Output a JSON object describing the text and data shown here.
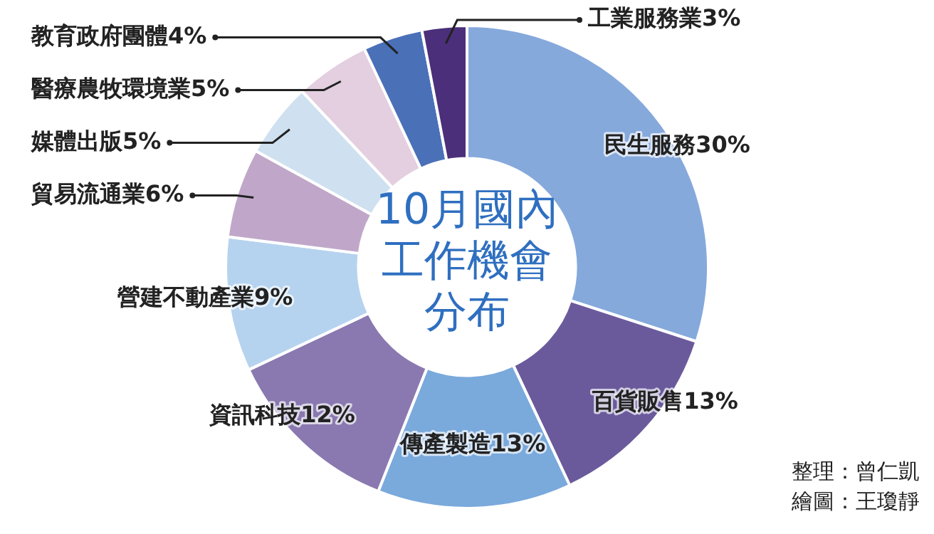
{
  "chart_data": {
    "type": "donut",
    "title": "10月國內工作機會分布",
    "categories": [
      "民生服務",
      "百貨販售",
      "傳產製造",
      "資訊科技",
      "營建不動產業",
      "貿易流通業",
      "媒體出版",
      "醫療農牧環境業",
      "教育政府團體",
      "工業服務業"
    ],
    "values": [
      30,
      13,
      13,
      12,
      9,
      6,
      5,
      5,
      4,
      3
    ],
    "value_labels": [
      "30%",
      "13%",
      "13%",
      "12%",
      "9%",
      "6%",
      "5%",
      "5%",
      "4%",
      "3%"
    ],
    "colors": [
      "#86a9dc",
      "#6a5a9c",
      "#7aa9dc",
      "#8a79b0",
      "#b5d3ef",
      "#c0a7c9",
      "#cfe0f0",
      "#e3cfe0",
      "#4a70b8",
      "#4b2f7a"
    ],
    "legend": false,
    "annotations": [
      "整理：曾仁凱",
      "繪圖：王瓊靜"
    ]
  }
}
